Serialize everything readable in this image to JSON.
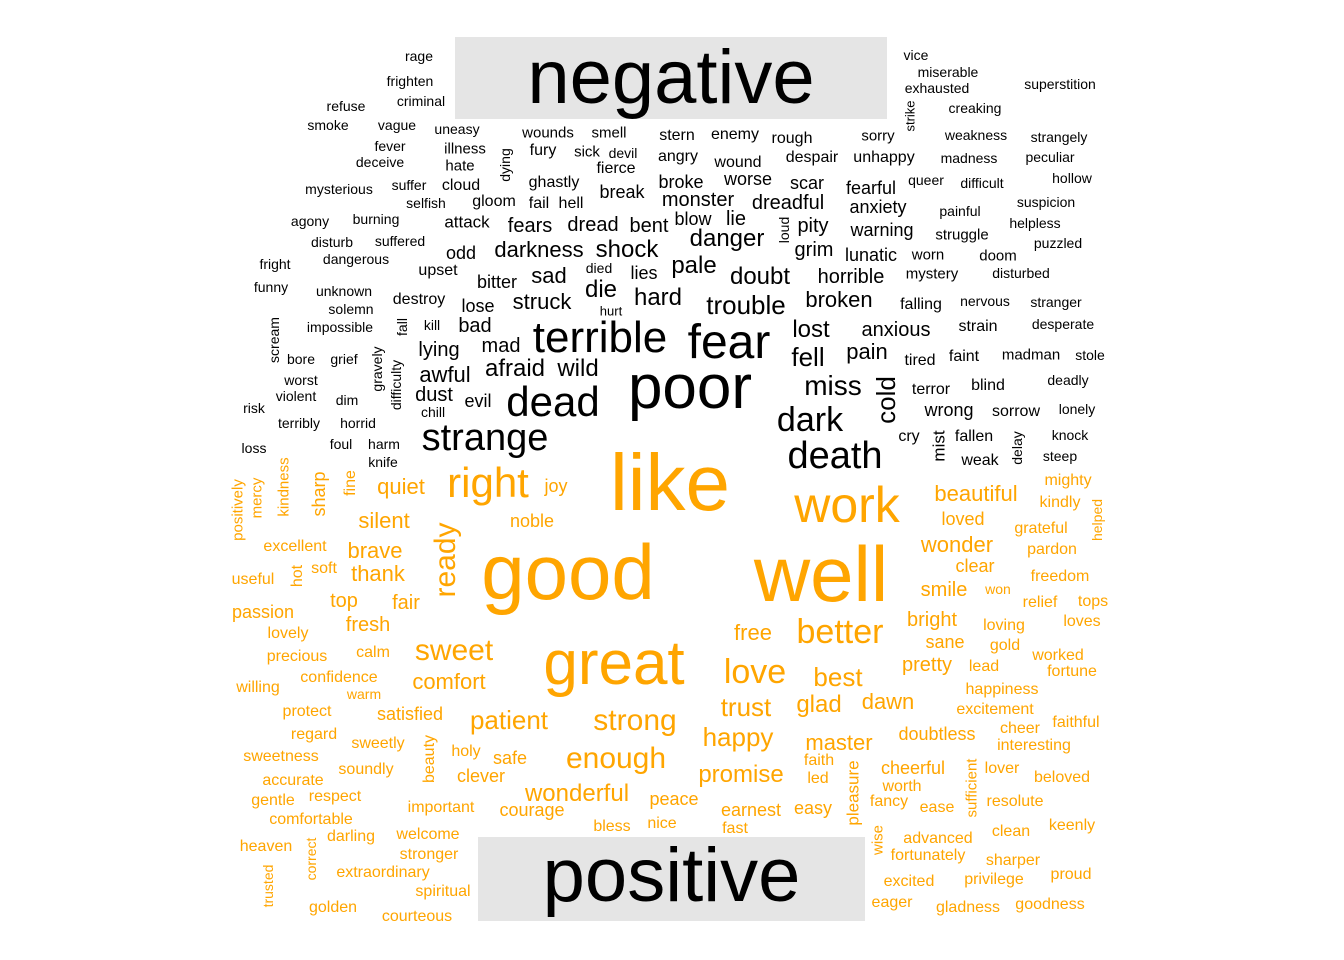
{
  "chart_data": {
    "type": "comparison word cloud",
    "groups": [
      {
        "name": "negative",
        "color": "#000000"
      },
      {
        "name": "positive",
        "color": "#ffa500"
      }
    ],
    "negative_words": [
      {
        "word": "poor",
        "size": 62
      },
      {
        "word": "fear",
        "size": 48
      },
      {
        "word": "terrible",
        "size": 44
      },
      {
        "word": "dead",
        "size": 42
      },
      {
        "word": "strange",
        "size": 38
      },
      {
        "word": "death",
        "size": 38
      },
      {
        "word": "dark",
        "size": 34
      },
      {
        "word": "miss",
        "size": 28
      },
      {
        "word": "fell",
        "size": 26
      },
      {
        "word": "lost",
        "size": 24
      },
      {
        "word": "cold",
        "size": 26
      },
      {
        "word": "trouble",
        "size": 26
      },
      {
        "word": "doubt",
        "size": 24
      },
      {
        "word": "danger",
        "size": 24
      },
      {
        "word": "pale",
        "size": 24
      },
      {
        "word": "shock",
        "size": 24
      },
      {
        "word": "darkness",
        "size": 22
      },
      {
        "word": "hard",
        "size": 24
      },
      {
        "word": "die",
        "size": 24
      },
      {
        "word": "struck",
        "size": 22
      },
      {
        "word": "sad",
        "size": 22
      },
      {
        "word": "wild",
        "size": 24
      },
      {
        "word": "afraid",
        "size": 24
      },
      {
        "word": "awful",
        "size": 22
      },
      {
        "word": "mad",
        "size": 20
      },
      {
        "word": "lying",
        "size": 20
      },
      {
        "word": "dust",
        "size": 20
      },
      {
        "word": "evil",
        "size": 18
      },
      {
        "word": "pain",
        "size": 22
      },
      {
        "word": "broken",
        "size": 22
      },
      {
        "word": "anxious",
        "size": 20
      },
      {
        "word": "horrible",
        "size": 20
      },
      {
        "word": "grim",
        "size": 20
      },
      {
        "word": "pity",
        "size": 20
      },
      {
        "word": "lunatic",
        "size": 18
      },
      {
        "word": "warning",
        "size": 18
      },
      {
        "word": "anxiety",
        "size": 18
      },
      {
        "word": "fearful",
        "size": 18
      },
      {
        "word": "dreadful",
        "size": 20
      },
      {
        "word": "scar",
        "size": 18
      },
      {
        "word": "worse",
        "size": 18
      },
      {
        "word": "monster",
        "size": 20
      },
      {
        "word": "broke",
        "size": 18
      },
      {
        "word": "break",
        "size": 18
      },
      {
        "word": "bent",
        "size": 20
      },
      {
        "word": "dread",
        "size": 20
      },
      {
        "word": "fears",
        "size": 20
      },
      {
        "word": "blow",
        "size": 18
      },
      {
        "word": "lie",
        "size": 20
      },
      {
        "word": "loud",
        "size": 14
      },
      {
        "word": "lies",
        "size": 18
      },
      {
        "word": "died",
        "size": 14
      },
      {
        "word": "bitter",
        "size": 18
      },
      {
        "word": "lose",
        "size": 18
      },
      {
        "word": "bad",
        "size": 20
      },
      {
        "word": "destroy",
        "size": 16
      },
      {
        "word": "upset",
        "size": 16
      },
      {
        "word": "odd",
        "size": 18
      },
      {
        "word": "attack",
        "size": 17
      },
      {
        "word": "gloom",
        "size": 16
      },
      {
        "word": "fail",
        "size": 16
      },
      {
        "word": "hell",
        "size": 16
      },
      {
        "word": "ghastly",
        "size": 16
      },
      {
        "word": "dying",
        "size": 14
      },
      {
        "word": "cloud",
        "size": 16
      },
      {
        "word": "selfish",
        "size": 14
      },
      {
        "word": "hate",
        "size": 15
      },
      {
        "word": "illness",
        "size": 15
      },
      {
        "word": "fury",
        "size": 16
      },
      {
        "word": "sick",
        "size": 15
      },
      {
        "word": "devil",
        "size": 14
      },
      {
        "word": "fierce",
        "size": 16
      },
      {
        "word": "wounds",
        "size": 15
      },
      {
        "word": "smell",
        "size": 15
      },
      {
        "word": "uneasy",
        "size": 14
      },
      {
        "word": "angry",
        "size": 16
      },
      {
        "word": "wound",
        "size": 16
      },
      {
        "word": "stern",
        "size": 16
      },
      {
        "word": "enemy",
        "size": 16
      },
      {
        "word": "rough",
        "size": 16
      },
      {
        "word": "despair",
        "size": 16
      },
      {
        "word": "unhappy",
        "size": 16
      },
      {
        "word": "sorry",
        "size": 15
      },
      {
        "word": "strike",
        "size": 13
      },
      {
        "word": "queer",
        "size": 14
      },
      {
        "word": "difficult",
        "size": 14
      },
      {
        "word": "painful",
        "size": 14
      },
      {
        "word": "struggle",
        "size": 15
      },
      {
        "word": "worn",
        "size": 15
      },
      {
        "word": "mystery",
        "size": 15
      },
      {
        "word": "doom",
        "size": 15
      },
      {
        "word": "disturbed",
        "size": 14
      },
      {
        "word": "falling",
        "size": 16
      },
      {
        "word": "nervous",
        "size": 14
      },
      {
        "word": "stranger",
        "size": 14
      },
      {
        "word": "strain",
        "size": 16
      },
      {
        "word": "desperate",
        "size": 14
      },
      {
        "word": "tired",
        "size": 16
      },
      {
        "word": "faint",
        "size": 16
      },
      {
        "word": "madman",
        "size": 15
      },
      {
        "word": "stole",
        "size": 14
      },
      {
        "word": "terror",
        "size": 16
      },
      {
        "word": "blind",
        "size": 16
      },
      {
        "word": "deadly",
        "size": 14
      },
      {
        "word": "wrong",
        "size": 18
      },
      {
        "word": "sorrow",
        "size": 16
      },
      {
        "word": "lonely",
        "size": 14
      },
      {
        "word": "mist",
        "size": 17
      },
      {
        "word": "cry",
        "size": 16
      },
      {
        "word": "fallen",
        "size": 16
      },
      {
        "word": "knock",
        "size": 14
      },
      {
        "word": "weak",
        "size": 16
      },
      {
        "word": "delay",
        "size": 14
      },
      {
        "word": "steep",
        "size": 14
      },
      {
        "word": "vice",
        "size": 14
      },
      {
        "word": "miserable",
        "size": 14
      },
      {
        "word": "exhausted",
        "size": 14
      },
      {
        "word": "superstition",
        "size": 14
      },
      {
        "word": "creaking",
        "size": 14
      },
      {
        "word": "weakness",
        "size": 14
      },
      {
        "word": "strangely",
        "size": 14
      },
      {
        "word": "madness",
        "size": 14
      },
      {
        "word": "peculiar",
        "size": 14
      },
      {
        "word": "hollow",
        "size": 14
      },
      {
        "word": "suspicion",
        "size": 14
      },
      {
        "word": "helpless",
        "size": 14
      },
      {
        "word": "puzzled",
        "size": 14
      },
      {
        "word": "rage",
        "size": 14
      },
      {
        "word": "frighten",
        "size": 14
      },
      {
        "word": "criminal",
        "size": 14
      },
      {
        "word": "refuse",
        "size": 14
      },
      {
        "word": "smoke",
        "size": 14
      },
      {
        "word": "vague",
        "size": 14
      },
      {
        "word": "fever",
        "size": 14
      },
      {
        "word": "deceive",
        "size": 14
      },
      {
        "word": "mysterious",
        "size": 14
      },
      {
        "word": "suffer",
        "size": 14
      },
      {
        "word": "agony",
        "size": 14
      },
      {
        "word": "burning",
        "size": 14
      },
      {
        "word": "disturb",
        "size": 14
      },
      {
        "word": "suffered",
        "size": 14
      },
      {
        "word": "dangerous",
        "size": 14
      },
      {
        "word": "fright",
        "size": 14
      },
      {
        "word": "funny",
        "size": 14
      },
      {
        "word": "unknown",
        "size": 14
      },
      {
        "word": "solemn",
        "size": 14
      },
      {
        "word": "impossible",
        "size": 14
      },
      {
        "word": "scream",
        "size": 14
      },
      {
        "word": "kill",
        "size": 14
      },
      {
        "word": "hurt",
        "size": 13
      },
      {
        "word": "fall",
        "size": 14
      },
      {
        "word": "bore",
        "size": 14
      },
      {
        "word": "grief",
        "size": 14
      },
      {
        "word": "worst",
        "size": 14
      },
      {
        "word": "violent",
        "size": 14
      },
      {
        "word": "gravely",
        "size": 14
      },
      {
        "word": "difficulty",
        "size": 14
      },
      {
        "word": "risk",
        "size": 14
      },
      {
        "word": "dim",
        "size": 14
      },
      {
        "word": "terribly",
        "size": 14
      },
      {
        "word": "horrid",
        "size": 14
      },
      {
        "word": "chill",
        "size": 14
      },
      {
        "word": "loss",
        "size": 14
      },
      {
        "word": "foul",
        "size": 14
      },
      {
        "word": "harm",
        "size": 14
      },
      {
        "word": "knife",
        "size": 14
      }
    ],
    "positive_words": [
      {
        "word": "good",
        "size": 78
      },
      {
        "word": "well",
        "size": 78
      },
      {
        "word": "like",
        "size": 80
      },
      {
        "word": "great",
        "size": 62
      },
      {
        "word": "work",
        "size": 50
      },
      {
        "word": "right",
        "size": 42
      },
      {
        "word": "better",
        "size": 34
      },
      {
        "word": "love",
        "size": 34
      },
      {
        "word": "sweet",
        "size": 30
      },
      {
        "word": "enough",
        "size": 30
      },
      {
        "word": "strong",
        "size": 30
      },
      {
        "word": "ready",
        "size": 30
      },
      {
        "word": "patient",
        "size": 26
      },
      {
        "word": "best",
        "size": 26
      },
      {
        "word": "trust",
        "size": 26
      },
      {
        "word": "happy",
        "size": 26
      },
      {
        "word": "wonderful",
        "size": 24
      },
      {
        "word": "promise",
        "size": 24
      },
      {
        "word": "glad",
        "size": 24
      },
      {
        "word": "beautiful",
        "size": 22
      },
      {
        "word": "wonder",
        "size": 22
      },
      {
        "word": "master",
        "size": 22
      },
      {
        "word": "comfort",
        "size": 22
      },
      {
        "word": "silent",
        "size": 22
      },
      {
        "word": "quiet",
        "size": 22
      },
      {
        "word": "brave",
        "size": 22
      },
      {
        "word": "thank",
        "size": 22
      },
      {
        "word": "dawn",
        "size": 22
      },
      {
        "word": "free",
        "size": 22
      },
      {
        "word": "smile",
        "size": 20
      },
      {
        "word": "fresh",
        "size": 20
      },
      {
        "word": "fair",
        "size": 20
      },
      {
        "word": "top",
        "size": 20
      },
      {
        "word": "pretty",
        "size": 20
      },
      {
        "word": "bright",
        "size": 20
      },
      {
        "word": "clever",
        "size": 18
      },
      {
        "word": "safe",
        "size": 18
      },
      {
        "word": "peace",
        "size": 18
      },
      {
        "word": "courage",
        "size": 18
      },
      {
        "word": "earnest",
        "size": 18
      },
      {
        "word": "easy",
        "size": 18
      },
      {
        "word": "satisfied",
        "size": 18
      },
      {
        "word": "noble",
        "size": 18
      },
      {
        "word": "joy",
        "size": 18
      },
      {
        "word": "sharp",
        "size": 18
      },
      {
        "word": "loved",
        "size": 18
      },
      {
        "word": "clear",
        "size": 18
      },
      {
        "word": "sane",
        "size": 18
      },
      {
        "word": "cheerful",
        "size": 18
      },
      {
        "word": "pleasure",
        "size": 17
      },
      {
        "word": "doubtless",
        "size": 18
      },
      {
        "word": "calm",
        "size": 16
      },
      {
        "word": "confidence",
        "size": 16
      },
      {
        "word": "beauty",
        "size": 16
      },
      {
        "word": "holy",
        "size": 16
      },
      {
        "word": "sweetly",
        "size": 16
      },
      {
        "word": "soundly",
        "size": 16
      },
      {
        "word": "faith",
        "size": 16
      },
      {
        "word": "led",
        "size": 16
      },
      {
        "word": "worth",
        "size": 16
      },
      {
        "word": "fancy",
        "size": 16
      },
      {
        "word": "ease",
        "size": 16
      },
      {
        "word": "bless",
        "size": 16
      },
      {
        "word": "nice",
        "size": 16
      },
      {
        "word": "fast",
        "size": 16
      },
      {
        "word": "important",
        "size": 16
      },
      {
        "word": "welcome",
        "size": 16
      },
      {
        "word": "stronger",
        "size": 16
      },
      {
        "word": "spiritual",
        "size": 16
      },
      {
        "word": "courteous",
        "size": 16
      },
      {
        "word": "extraordinary",
        "size": 16
      },
      {
        "word": "correct",
        "size": 14
      },
      {
        "word": "darling",
        "size": 16
      },
      {
        "word": "golden",
        "size": 16
      },
      {
        "word": "trusted",
        "size": 14
      },
      {
        "word": "heaven",
        "size": 16
      },
      {
        "word": "comfortable",
        "size": 16
      },
      {
        "word": "gentle",
        "size": 16
      },
      {
        "word": "respect",
        "size": 16
      },
      {
        "word": "accurate",
        "size": 16
      },
      {
        "word": "sweetness",
        "size": 16
      },
      {
        "word": "regard",
        "size": 16
      },
      {
        "word": "protect",
        "size": 16
      },
      {
        "word": "warm",
        "size": 14
      },
      {
        "word": "willing",
        "size": 16
      },
      {
        "word": "precious",
        "size": 16
      },
      {
        "word": "lovely",
        "size": 16
      },
      {
        "word": "passion",
        "size": 18
      },
      {
        "word": "useful",
        "size": 16
      },
      {
        "word": "soft",
        "size": 16
      },
      {
        "word": "hot",
        "size": 16
      },
      {
        "word": "excellent",
        "size": 16
      },
      {
        "word": "positively",
        "size": 15
      },
      {
        "word": "mercy",
        "size": 15
      },
      {
        "word": "kindness",
        "size": 15
      },
      {
        "word": "fine",
        "size": 16
      },
      {
        "word": "lead",
        "size": 16
      },
      {
        "word": "gold",
        "size": 16
      },
      {
        "word": "loving",
        "size": 16
      },
      {
        "word": "won",
        "size": 14
      },
      {
        "word": "relief",
        "size": 16
      },
      {
        "word": "freedom",
        "size": 16
      },
      {
        "word": "pardon",
        "size": 16
      },
      {
        "word": "grateful",
        "size": 16
      },
      {
        "word": "kindly",
        "size": 16
      },
      {
        "word": "mighty",
        "size": 16
      },
      {
        "word": "helped",
        "size": 14
      },
      {
        "word": "tops",
        "size": 16
      },
      {
        "word": "loves",
        "size": 16
      },
      {
        "word": "worked",
        "size": 16
      },
      {
        "word": "fortune",
        "size": 16
      },
      {
        "word": "happiness",
        "size": 16
      },
      {
        "word": "excitement",
        "size": 16
      },
      {
        "word": "cheer",
        "size": 16
      },
      {
        "word": "faithful",
        "size": 16
      },
      {
        "word": "interesting",
        "size": 16
      },
      {
        "word": "lover",
        "size": 16
      },
      {
        "word": "beloved",
        "size": 16
      },
      {
        "word": "sufficient",
        "size": 15
      },
      {
        "word": "resolute",
        "size": 16
      },
      {
        "word": "keenly",
        "size": 16
      },
      {
        "word": "clean",
        "size": 16
      },
      {
        "word": "advanced",
        "size": 16
      },
      {
        "word": "wise",
        "size": 15
      },
      {
        "word": "fortunately",
        "size": 16
      },
      {
        "word": "sharper",
        "size": 16
      },
      {
        "word": "proud",
        "size": 16
      },
      {
        "word": "excited",
        "size": 16
      },
      {
        "word": "privilege",
        "size": 16
      },
      {
        "word": "eager",
        "size": 16
      },
      {
        "word": "gladness",
        "size": 16
      },
      {
        "word": "goodness",
        "size": 16
      }
    ]
  },
  "labels": {
    "top": "negative",
    "bottom": "positive"
  }
}
